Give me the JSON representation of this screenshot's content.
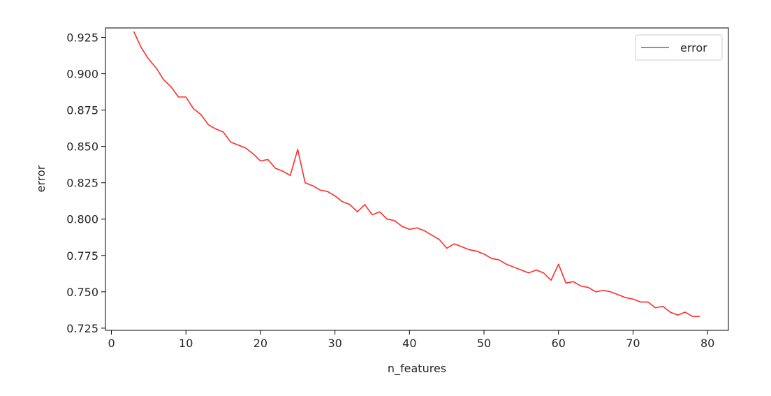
{
  "chart_data": {
    "type": "line",
    "title": "",
    "xlabel": "n_features",
    "ylabel": "error",
    "xlim": [
      -0.8,
      82.8
    ],
    "ylim": [
      0.7235,
      0.9315
    ],
    "xticks": [
      0,
      10,
      20,
      30,
      40,
      50,
      60,
      70,
      80
    ],
    "xtick_labels": [
      "0",
      "10",
      "20",
      "30",
      "40",
      "50",
      "60",
      "70",
      "80"
    ],
    "yticks": [
      0.725,
      0.75,
      0.775,
      0.8,
      0.825,
      0.85,
      0.875,
      0.9,
      0.925
    ],
    "ytick_labels": [
      "0.725",
      "0.750",
      "0.775",
      "0.800",
      "0.825",
      "0.850",
      "0.875",
      "0.900",
      "0.925"
    ],
    "grid": false,
    "legend_position": "top-right",
    "series": [
      {
        "name": "error",
        "color": "#ff2b2b",
        "x": [
          3,
          4,
          5,
          6,
          7,
          8,
          9,
          10,
          11,
          12,
          13,
          14,
          15,
          16,
          17,
          18,
          19,
          20,
          21,
          22,
          23,
          24,
          25,
          26,
          27,
          28,
          29,
          30,
          31,
          32,
          33,
          34,
          35,
          36,
          37,
          38,
          39,
          40,
          41,
          42,
          43,
          44,
          45,
          46,
          47,
          48,
          49,
          50,
          51,
          52,
          53,
          54,
          55,
          56,
          57,
          58,
          59,
          60,
          61,
          62,
          63,
          64,
          65,
          66,
          67,
          68,
          69,
          70,
          71,
          72,
          73,
          74,
          75,
          76,
          77,
          78,
          79
        ],
        "y": [
          0.929,
          0.918,
          0.91,
          0.904,
          0.896,
          0.891,
          0.884,
          0.884,
          0.876,
          0.872,
          0.865,
          0.862,
          0.86,
          0.853,
          0.851,
          0.849,
          0.845,
          0.84,
          0.841,
          0.835,
          0.833,
          0.83,
          0.848,
          0.825,
          0.823,
          0.82,
          0.819,
          0.816,
          0.812,
          0.81,
          0.805,
          0.81,
          0.803,
          0.805,
          0.8,
          0.799,
          0.795,
          0.793,
          0.794,
          0.792,
          0.789,
          0.786,
          0.78,
          0.783,
          0.781,
          0.779,
          0.778,
          0.776,
          0.773,
          0.772,
          0.769,
          0.767,
          0.765,
          0.763,
          0.765,
          0.763,
          0.758,
          0.769,
          0.756,
          0.757,
          0.754,
          0.753,
          0.75,
          0.751,
          0.75,
          0.748,
          0.746,
          0.745,
          0.743,
          0.743,
          0.739,
          0.74,
          0.736,
          0.734,
          0.736,
          0.733,
          0.733
        ]
      }
    ]
  }
}
